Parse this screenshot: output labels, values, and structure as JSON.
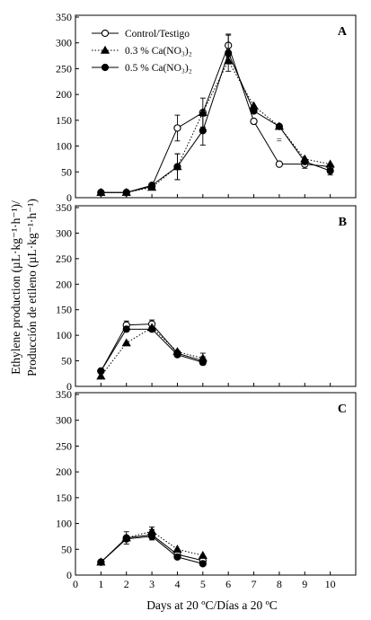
{
  "figure": {
    "xlabel": "Days at 20 ºC/Días a 20 ºC",
    "ylabel_line1": "Ethylene production (µL·kg⁻¹·h⁻¹)/",
    "ylabel_line2": "Producción de etileno (µL·kg⁻¹·h⁻¹)",
    "legend": [
      {
        "name": "Control/Testigo",
        "marker": "circle-open",
        "line": "solid"
      },
      {
        "name": "0.3 % Ca(NO₃)₂",
        "marker": "triangle",
        "line": "dotted"
      },
      {
        "name": "0.5 % Ca(NO₃)₂",
        "marker": "circle-filled",
        "line": "solid"
      }
    ]
  },
  "chart_data": [
    {
      "type": "line",
      "panel": "A",
      "xlim": [
        0,
        11
      ],
      "ylim": [
        0,
        350
      ],
      "x_ticks": [
        0,
        1,
        2,
        3,
        4,
        5,
        6,
        7,
        8,
        9,
        10
      ],
      "y_ticks": [
        0,
        50,
        100,
        150,
        200,
        250,
        300,
        350
      ],
      "legend_position": "top-left",
      "series": [
        {
          "name": "Control/Testigo",
          "x": [
            1,
            2,
            3,
            4,
            5,
            6,
            7,
            8,
            9,
            10
          ],
          "values": [
            10,
            10,
            22,
            135,
            165,
            295,
            148,
            65,
            65,
            60
          ],
          "err": [
            0,
            0,
            0,
            25,
            28,
            22,
            0,
            0,
            8,
            0
          ]
        },
        {
          "name": "0.3 % Ca(NO₃)₂",
          "x": [
            1,
            2,
            3,
            4,
            5,
            6,
            7,
            8,
            9,
            10
          ],
          "values": [
            10,
            10,
            20,
            60,
            165,
            265,
            178,
            138,
            75,
            65
          ],
          "err": [
            0,
            0,
            0,
            25,
            0,
            0,
            0,
            0,
            0,
            0
          ]
        },
        {
          "name": "0.5 % Ca(NO₃)₂",
          "x": [
            1,
            2,
            3,
            4,
            5,
            6,
            7,
            8,
            9,
            10
          ],
          "values": [
            10,
            10,
            24,
            60,
            130,
            280,
            168,
            138,
            70,
            52
          ],
          "err": [
            0,
            0,
            0,
            25,
            28,
            35,
            0,
            0,
            0,
            8
          ]
        }
      ],
      "annotations": [
        {
          "text": "=",
          "x": 8,
          "y": 112
        }
      ]
    },
    {
      "type": "line",
      "panel": "B",
      "xlim": [
        0,
        11
      ],
      "ylim": [
        0,
        350
      ],
      "x_ticks": [
        0,
        1,
        2,
        3,
        4,
        5,
        6,
        7,
        8,
        9,
        10
      ],
      "y_ticks": [
        0,
        50,
        100,
        150,
        200,
        250,
        300,
        350
      ],
      "series": [
        {
          "name": "Control/Testigo",
          "x": [
            1,
            2,
            3,
            4,
            5
          ],
          "values": [
            30,
            120,
            122,
            65,
            50
          ],
          "err": [
            0,
            8,
            8,
            0,
            8
          ]
        },
        {
          "name": "0.3 % Ca(NO₃)₂",
          "x": [
            1,
            2,
            3,
            4,
            5
          ],
          "values": [
            20,
            85,
            115,
            68,
            55
          ],
          "err": [
            0,
            0,
            0,
            0,
            10
          ]
        },
        {
          "name": "0.5 % Ca(NO₃)₂",
          "x": [
            1,
            2,
            3,
            4,
            5
          ],
          "values": [
            30,
            112,
            112,
            62,
            47
          ],
          "err": [
            0,
            0,
            0,
            0,
            0
          ]
        }
      ]
    },
    {
      "type": "line",
      "panel": "C",
      "xlim": [
        0,
        11
      ],
      "ylim": [
        0,
        350
      ],
      "x_ticks": [
        0,
        1,
        2,
        3,
        4,
        5,
        6,
        7,
        8,
        9,
        10
      ],
      "y_ticks": [
        0,
        50,
        100,
        150,
        200,
        250,
        300,
        350
      ],
      "series": [
        {
          "name": "Control/Testigo",
          "x": [
            1,
            2,
            3,
            4,
            5
          ],
          "values": [
            25,
            72,
            78,
            40,
            28
          ],
          "err": [
            0,
            12,
            10,
            0,
            0
          ]
        },
        {
          "name": "0.3 % Ca(NO₃)₂",
          "x": [
            1,
            2,
            3,
            4,
            5
          ],
          "values": [
            25,
            72,
            85,
            50,
            38
          ],
          "err": [
            0,
            0,
            8,
            0,
            0
          ]
        },
        {
          "name": "0.5 % Ca(NO₃)₂",
          "x": [
            1,
            2,
            3,
            4,
            5
          ],
          "values": [
            25,
            70,
            75,
            35,
            22
          ],
          "err": [
            0,
            0,
            0,
            0,
            0
          ]
        }
      ]
    }
  ]
}
